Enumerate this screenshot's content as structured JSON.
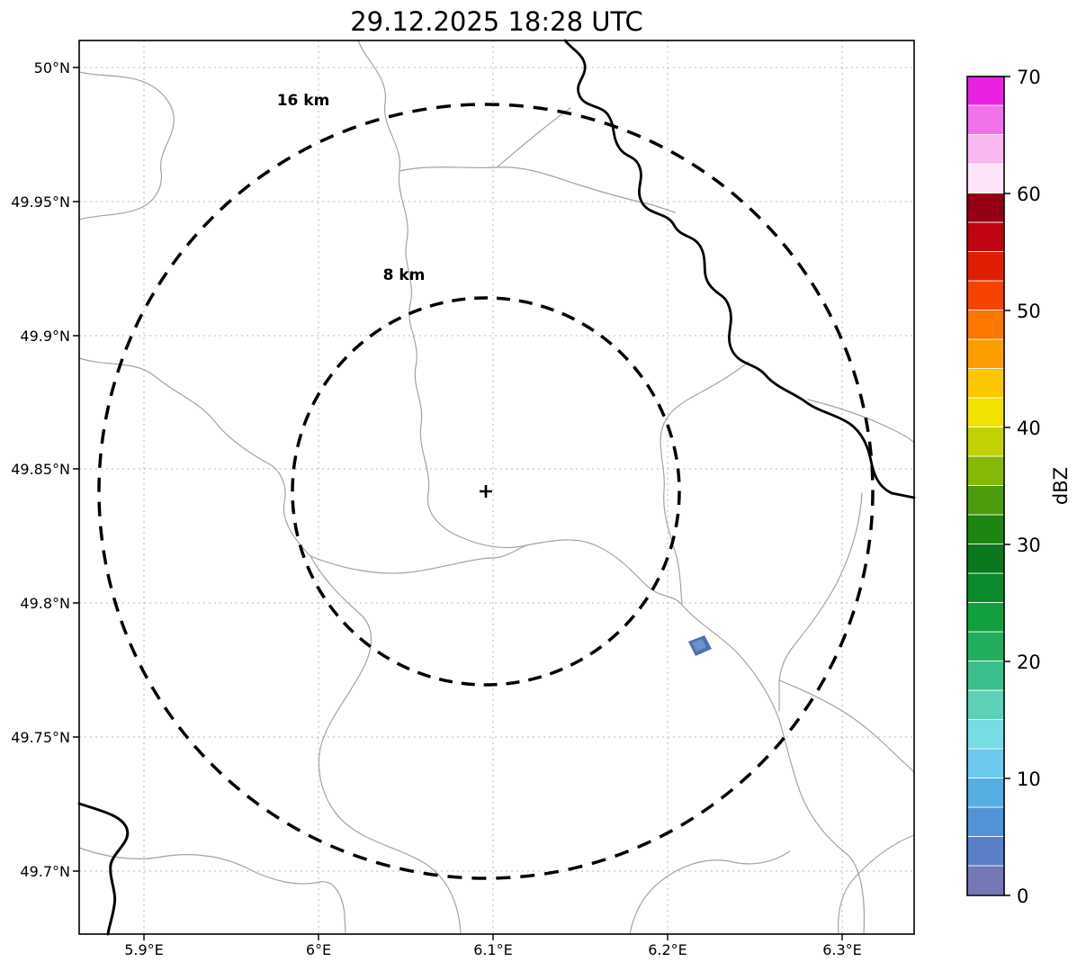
{
  "title": "29.12.2025 18:28 UTC",
  "axes": {
    "x_ticks": [
      "5.9°E",
      "6°E",
      "6.1°E",
      "6.2°E",
      "6.3°E"
    ],
    "y_ticks": [
      "50°N",
      "49.95°N",
      "49.9°N",
      "49.85°N",
      "49.8°N",
      "49.75°N",
      "49.7°N"
    ]
  },
  "range_rings": [
    {
      "label": "16 km",
      "radius_km": 16
    },
    {
      "label": "8 km",
      "radius_km": 8
    }
  ],
  "colorbar": {
    "label": "dBZ",
    "ticks_top_to_bottom": [
      "70",
      "60",
      "50",
      "40",
      "30",
      "20",
      "10",
      "0"
    ],
    "min": 0,
    "max": 70,
    "colors_bottom_to_top": [
      "#7577b6",
      "#5a7fc6",
      "#5193d6",
      "#57aee2",
      "#6cc8ec",
      "#77dce4",
      "#5ed0b8",
      "#3cbe8c",
      "#22ae5c",
      "#12a03e",
      "#0a8c2c",
      "#0b771e",
      "#1e8412",
      "#4c9c0c",
      "#86b806",
      "#c0d203",
      "#f2e200",
      "#fcc600",
      "#fc9e00",
      "#fc7600",
      "#f64400",
      "#e01e04",
      "#c00410",
      "#940014",
      "#fde4fb",
      "#f9b8f2",
      "#f272ea",
      "#e922e2"
    ]
  },
  "chart_data": {
    "type": "heatmap",
    "title": "29.12.2025 18:28 UTC",
    "xlabel": "",
    "ylabel": "",
    "x_axis": {
      "unit": "°E",
      "range": [
        5.862,
        6.342
      ],
      "ticks": [
        5.9,
        6.0,
        6.1,
        6.2,
        6.3
      ]
    },
    "y_axis": {
      "unit": "°N",
      "range": [
        49.676,
        50.01
      ],
      "ticks": [
        50.0,
        49.95,
        49.9,
        49.85,
        49.8,
        49.75,
        49.7
      ]
    },
    "grid": true,
    "radar_center": {
      "lon_e": 6.096,
      "lat_n": 49.842,
      "marker": "+"
    },
    "range_rings_km": [
      8,
      16
    ],
    "colorbar": {
      "label": "dBZ",
      "min": 0,
      "max": 70,
      "tick_step": 10,
      "step_dbz": 2.5,
      "position": "right"
    },
    "echoes": [
      {
        "lon_e": 6.215,
        "lat_n": 49.786,
        "dbz_approx": 5,
        "color": "#4e71b2",
        "note": "single small echo southeast of radar"
      }
    ],
    "map_layers": [
      {
        "name": "administrative-boundaries",
        "style": "thin gray lines"
      },
      {
        "name": "river",
        "style": "thick black line, upper right and lower left"
      }
    ]
  }
}
